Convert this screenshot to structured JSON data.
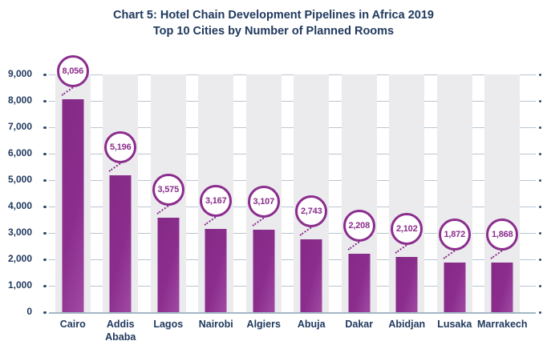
{
  "title": {
    "line1": "Chart 5: Hotel Chain Development Pipelines in Africa 2019",
    "line2": "Top 10 Cities by Number of Planned Rooms"
  },
  "colors": {
    "bar": "#8b2d8d",
    "bar-light": "#a04aa3",
    "navy": "#20395e",
    "grid": "#b7c6d3",
    "band": "#ebebee",
    "axis": "#a3b8c6"
  },
  "chart_data": {
    "type": "bar",
    "title": "Chart 5: Hotel Chain Development Pipelines in Africa 2019",
    "subtitle": "Top 10 Cities by Number of Planned Rooms",
    "categories": [
      "Cairo",
      "Addis Ababa",
      "Lagos",
      "Nairobi",
      "Algiers",
      "Abuja",
      "Dakar",
      "Abidjan",
      "Lusaka",
      "Marrakech"
    ],
    "values": [
      8056,
      5196,
      3575,
      3167,
      3107,
      2743,
      2208,
      2102,
      1872,
      1868
    ],
    "value_labels": [
      "8,056",
      "5,196",
      "3,575",
      "3,167",
      "3,107",
      "2,743",
      "2,208",
      "2,102",
      "1,872",
      "1,868"
    ],
    "y_tick_labels": [
      "9,000",
      "8,000",
      "7,000",
      "6,000",
      "5,000",
      "4,000",
      "3,000",
      "2,000",
      "1,000",
      "0"
    ],
    "xlabel": "",
    "ylabel": "",
    "ylim": [
      0,
      9000
    ],
    "y_tick_step": 1000,
    "grid": "horizontal",
    "legend": "none",
    "annotation_style": "circled value labels connected to bars with dotted lines",
    "column_bands": "alternating light gray vertical bands behind bars"
  }
}
